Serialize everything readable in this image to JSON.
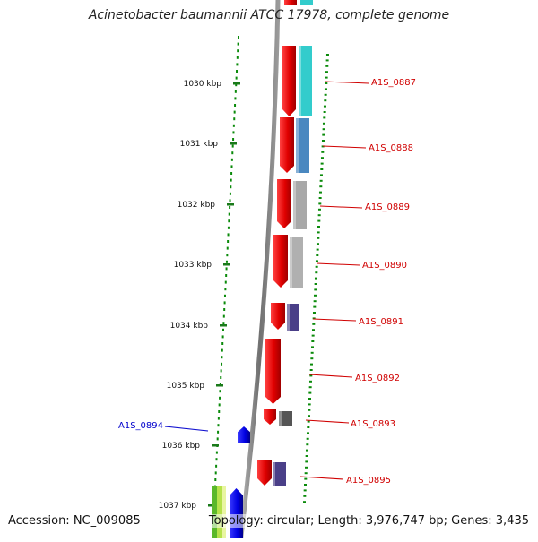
{
  "title": "Acinetobacter baumannii ATCC 17978, complete genome",
  "footer": {
    "accession": "Accession: NC_009085",
    "topology": "Topology: circular; Length: 3,976,747 bp; Genes: 3,435"
  },
  "ruler": {
    "unit": "kbp",
    "ticks": [
      "1030 kbp",
      "1031 kbp",
      "1032 kbp",
      "1033 kbp",
      "1034 kbp",
      "1035 kbp",
      "1036 kbp",
      "1037 kbp"
    ]
  },
  "genes": [
    {
      "label": "A1S_0887",
      "strand": "forward",
      "label_color": "#d00000",
      "feature_color": "#33cccc"
    },
    {
      "label": "A1S_0888",
      "strand": "forward",
      "label_color": "#d00000",
      "feature_color": "#4a88c0"
    },
    {
      "label": "A1S_0889",
      "strand": "forward",
      "label_color": "#d00000",
      "feature_color": "#a8a8a8"
    },
    {
      "label": "A1S_0890",
      "strand": "forward",
      "label_color": "#d00000",
      "feature_color": "#b0b0b0"
    },
    {
      "label": "A1S_0891",
      "strand": "forward",
      "label_color": "#d00000",
      "feature_color": "#4a3f88"
    },
    {
      "label": "A1S_0892",
      "strand": "forward",
      "label_color": "#d00000",
      "feature_color": null
    },
    {
      "label": "A1S_0893",
      "strand": "forward",
      "label_color": "#d00000",
      "feature_color": "#555555"
    },
    {
      "label": "A1S_0894",
      "strand": "reverse",
      "label_color": "#0000cc",
      "feature_color": null
    },
    {
      "label": "A1S_0895",
      "strand": "forward",
      "label_color": "#d00000",
      "feature_color": "#4a3f88"
    }
  ],
  "colors": {
    "forward_cds": "#ee0000",
    "reverse_cds": "#0000ee",
    "backbone": "#888888",
    "ruler": "#1a7a1a",
    "dotted_track": "#0a8a0a"
  }
}
